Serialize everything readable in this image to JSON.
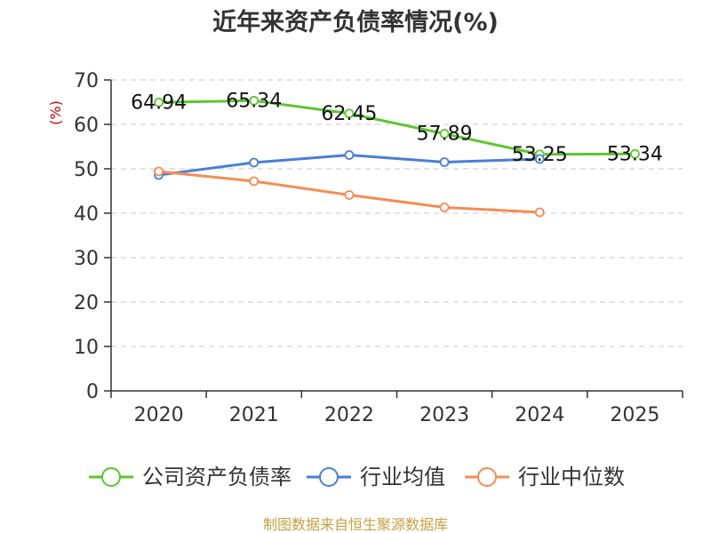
{
  "chart_data": {
    "type": "line",
    "title": "近年来资产负债率情况(%)",
    "ylabel": "(%)",
    "categories": [
      "2020",
      "2021",
      "2022",
      "2023",
      "2024",
      "2025"
    ],
    "ylim": [
      0,
      70
    ],
    "yticks": [
      0,
      10,
      20,
      30,
      40,
      50,
      60,
      70
    ],
    "grid": true,
    "legend_position": "bottom",
    "series": [
      {
        "name": "公司资产负债率",
        "color": "#5cc72e",
        "values": [
          64.94,
          65.34,
          62.45,
          57.89,
          53.25,
          53.34
        ],
        "labels": [
          "64.94",
          "65.34",
          "62.45",
          "57.89",
          "53.25",
          "53.34"
        ]
      },
      {
        "name": "行业均值",
        "color": "#4a7fd8",
        "values": [
          48.6,
          51.4,
          53.1,
          51.5,
          52.2,
          null
        ]
      },
      {
        "name": "行业中位数",
        "color": "#f58c55",
        "values": [
          49.4,
          47.2,
          44.1,
          41.3,
          40.2,
          null
        ]
      }
    ],
    "source": "制图数据来自恒生聚源数据库"
  }
}
